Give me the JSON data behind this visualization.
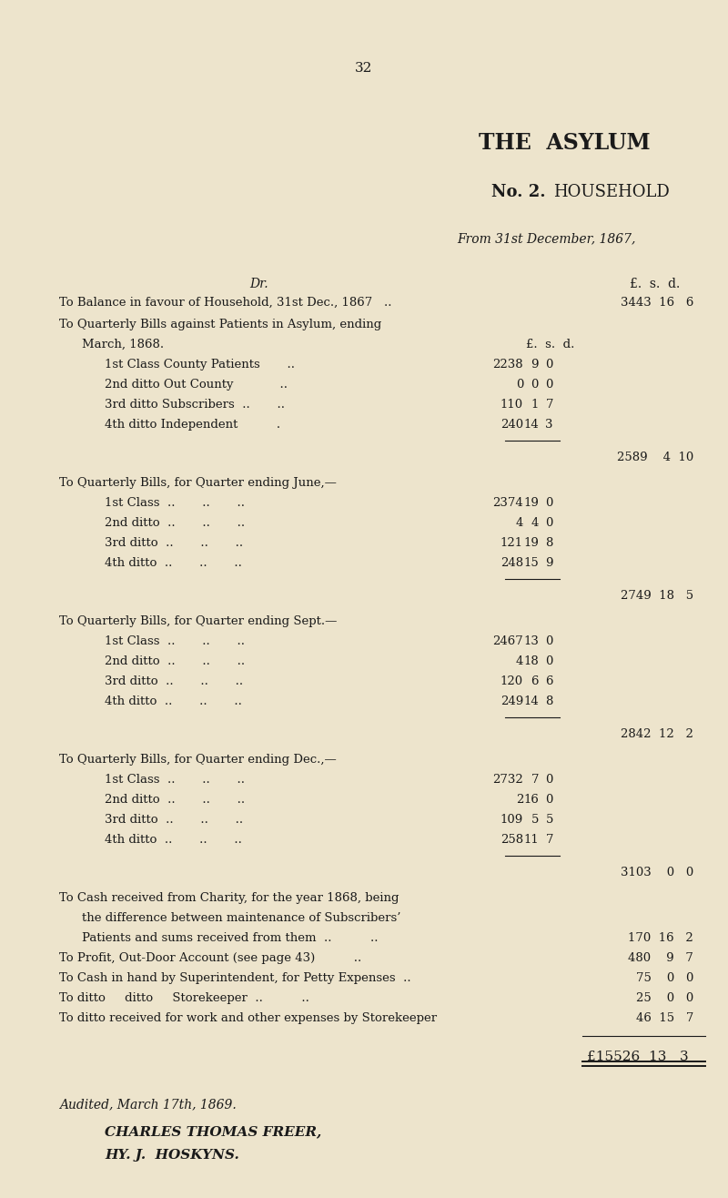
{
  "bg_color": "#ede4cc",
  "text_color": "#1a1a1a",
  "page_number": "32",
  "title1": "THE  ASYLUM",
  "title2_no": "No. 2.",
  "title2_rest": "HOUSEHOLD",
  "subtitle": "From 31st December, 1867,",
  "col_dr": "Dr.",
  "col_lsd": "£.  s.  d."
}
